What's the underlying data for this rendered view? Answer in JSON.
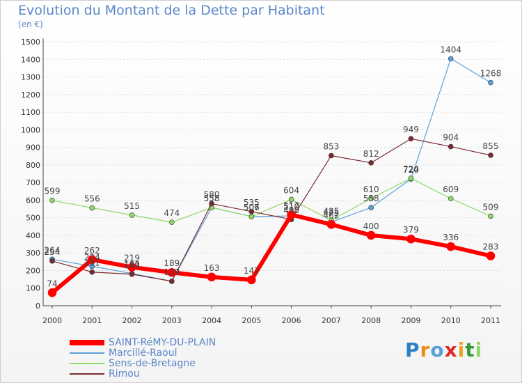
{
  "chart_data": {
    "type": "line",
    "title": "Evolution du Montant de la Dette par Habitant",
    "subtitle": "(en €)",
    "x": [
      "2000",
      "2001",
      "2002",
      "2003",
      "2004",
      "2005",
      "2006",
      "2007",
      "2008",
      "2009",
      "2010",
      "2011"
    ],
    "ylim": [
      0,
      1500
    ],
    "yticks": [
      0,
      100,
      200,
      300,
      400,
      500,
      600,
      700,
      800,
      900,
      1000,
      1100,
      1200,
      1300,
      1400,
      1500
    ],
    "grid": "horizontal",
    "legend_position": "bottom-left",
    "series": [
      {
        "name": "SAINT-RéMY-DU-PLAIN",
        "color": "#ff0000",
        "values": [
          74,
          262,
          219,
          189,
          163,
          147,
          517,
          462,
          400,
          379,
          336,
          283
        ]
      },
      {
        "name": "Marcillé-Raoul",
        "color": "#5aa0d8",
        "values": [
          264,
          224,
          183,
          139,
          558,
          507,
          510,
          475,
          558,
          720,
          1404,
          1268
        ]
      },
      {
        "name": "Sens-de-Bretagne",
        "color": "#8ed86a",
        "values": [
          599,
          556,
          515,
          474,
          558,
          506,
          604,
          485,
          610,
          724,
          609,
          509
        ]
      },
      {
        "name": "Rimou",
        "color": "#7a2a30",
        "values": [
          254,
          191,
          179,
          139,
          580,
          535,
          490,
          853,
          812,
          949,
          904,
          855
        ]
      }
    ]
  },
  "brand": {
    "text": "Proxiti"
  }
}
